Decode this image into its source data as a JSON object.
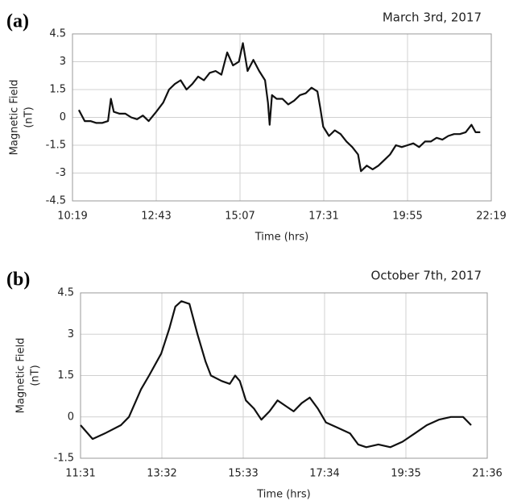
{
  "chart_data": [
    {
      "type": "line",
      "panel_label": "(a)",
      "title": "March 3rd, 2017",
      "xlabel": "Time (hrs)",
      "ylabel": [
        "Magnetic Field",
        "(nT)"
      ],
      "x": [
        630,
        640,
        650,
        660,
        670,
        680,
        685,
        690,
        700,
        710,
        720,
        730,
        740,
        750,
        763,
        775,
        785,
        795,
        805,
        815,
        825,
        835,
        845,
        855,
        865,
        875,
        885,
        895,
        905,
        912,
        920,
        930,
        940,
        950,
        955,
        958,
        962,
        970,
        980,
        990,
        1000,
        1010,
        1020,
        1030,
        1040,
        1045,
        1050,
        1060,
        1070,
        1080,
        1090,
        1100,
        1110,
        1115,
        1125,
        1135,
        1145,
        1155,
        1165,
        1175,
        1185,
        1195,
        1205,
        1215,
        1225,
        1235,
        1245,
        1255,
        1265,
        1275,
        1285,
        1295,
        1305,
        1312,
        1320
      ],
      "series": [
        {
          "color": "#111111",
          "values": [
            0.4,
            -0.2,
            -0.2,
            -0.3,
            -0.3,
            -0.2,
            1.0,
            0.3,
            0.2,
            0.2,
            0,
            -0.1,
            0.1,
            -0.2,
            0.3,
            0.8,
            1.5,
            1.8,
            2.0,
            1.5,
            1.8,
            2.2,
            2.0,
            2.4,
            2.5,
            2.3,
            3.5,
            2.8,
            3.0,
            4.0,
            2.5,
            3.1,
            2.5,
            2.0,
            0.8,
            -0.4,
            1.2,
            1.0,
            1.0,
            0.7,
            0.9,
            1.2,
            1.3,
            1.6,
            1.4,
            0.5,
            -0.5,
            -1.0,
            -0.7,
            -0.9,
            -1.3,
            -1.6,
            -2.0,
            -2.9,
            -2.6,
            -2.8,
            -2.6,
            -2.3,
            -2.0,
            -1.5,
            -1.6,
            -1.5,
            -1.4,
            -1.6,
            -1.3,
            -1.3,
            -1.1,
            -1.2,
            -1.0,
            -0.9,
            -0.9,
            -0.8,
            -0.4,
            -0.8,
            -0.8
          ]
        }
      ],
      "xlim": [
        619,
        1339
      ],
      "xticks": [
        {
          "value": 619,
          "label": "10:19"
        },
        {
          "value": 763,
          "label": "12:43"
        },
        {
          "value": 907,
          "label": "15:07"
        },
        {
          "value": 1051,
          "label": "17:31"
        },
        {
          "value": 1195,
          "label": "19:55"
        },
        {
          "value": 1339,
          "label": "22:19"
        }
      ],
      "ylim": [
        -4.5,
        4.5
      ],
      "yticks": [
        -4.5,
        -3,
        -1.5,
        0,
        1.5,
        3,
        4.5
      ],
      "grid": true
    },
    {
      "type": "line",
      "panel_label": "(b)",
      "title": "October 7th, 2017",
      "xlabel": "Time (hrs)",
      "ylabel": [
        "Magnetic Field",
        "(nT)"
      ],
      "x": [
        691,
        709,
        727,
        751,
        763,
        781,
        793,
        811,
        823,
        832,
        841,
        853,
        865,
        877,
        885,
        901,
        913,
        921,
        928,
        937,
        949,
        960,
        972,
        984,
        996,
        1008,
        1020,
        1032,
        1044,
        1056,
        1074,
        1092,
        1104,
        1116,
        1134,
        1152,
        1170,
        1188,
        1206,
        1224,
        1242,
        1260,
        1272
      ],
      "series": [
        {
          "color": "#111111",
          "values": [
            -0.3,
            -0.8,
            -0.6,
            -0.3,
            0,
            1.0,
            1.5,
            2.3,
            3.2,
            4.0,
            4.2,
            4.1,
            3.0,
            2.0,
            1.5,
            1.3,
            1.2,
            1.5,
            1.3,
            0.6,
            0.3,
            -0.1,
            0.2,
            0.6,
            0.4,
            0.2,
            0.5,
            0.7,
            0.3,
            -0.2,
            -0.4,
            -0.6,
            -1.0,
            -1.1,
            -1.0,
            -1.1,
            -0.9,
            -0.6,
            -0.3,
            -0.1,
            0,
            0,
            -0.3
          ]
        }
      ],
      "xlim": [
        691,
        1296
      ],
      "xticks": [
        {
          "value": 691,
          "label": "11:31"
        },
        {
          "value": 812,
          "label": "13:32"
        },
        {
          "value": 933,
          "label": "15:33"
        },
        {
          "value": 1054,
          "label": "17:34"
        },
        {
          "value": 1175,
          "label": "19:35"
        },
        {
          "value": 1296,
          "label": "21:36"
        }
      ],
      "ylim": [
        -1.5,
        4.5
      ],
      "yticks": [
        -1.5,
        0,
        1.5,
        3,
        4.5
      ],
      "grid": true
    }
  ]
}
